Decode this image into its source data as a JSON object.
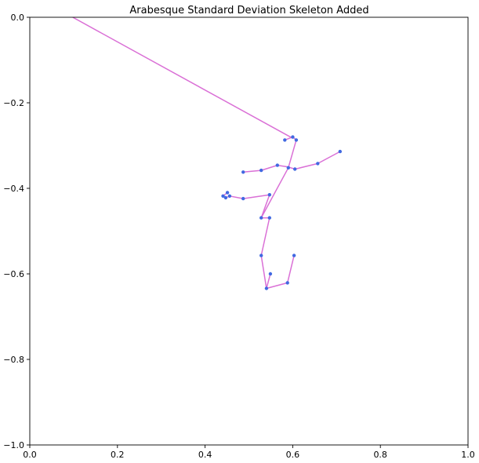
{
  "chart_data": {
    "type": "line",
    "title": "Arabesque Standard Deviation Skeleton Added",
    "xlabel": "",
    "ylabel": "",
    "xlim": [
      0,
      1
    ],
    "ylim": [
      -1,
      0
    ],
    "xticks": [
      0.0,
      0.2,
      0.4,
      0.6,
      0.8,
      1.0
    ],
    "xtick_labels": [
      "0.0",
      "0.2",
      "0.4",
      "0.6",
      "0.8",
      "1.0"
    ],
    "yticks": [
      0.0,
      -0.2,
      -0.4,
      -0.6,
      -0.8,
      -1.0
    ],
    "ytick_labels": [
      "0.0",
      "−0.2",
      "−0.4",
      "−0.6",
      "−0.8",
      "−1.0"
    ],
    "grid": false,
    "line_color": "#da70d6",
    "point_color": "#4169e1",
    "segments": [
      {
        "x": [
          0.098,
          0.6
        ],
        "y": [
          0.0,
          -0.283
        ]
      },
      {
        "x": [
          0.582,
          0.6,
          0.608
        ],
        "y": [
          -0.287,
          -0.28,
          -0.287
        ]
      },
      {
        "x": [
          0.608,
          0.59,
          0.528
        ],
        "y": [
          -0.287,
          -0.352,
          -0.469
        ]
      },
      {
        "x": [
          0.487,
          0.528,
          0.565,
          0.59,
          0.605,
          0.657,
          0.708
        ],
        "y": [
          -0.362,
          -0.358,
          -0.346,
          -0.35,
          -0.355,
          -0.342,
          -0.314
        ]
      },
      {
        "x": [
          0.451,
          0.441,
          0.447,
          0.456,
          0.487,
          0.547,
          0.528
        ],
        "y": [
          -0.41,
          -0.418,
          -0.422,
          -0.418,
          -0.424,
          -0.415,
          -0.469
        ]
      },
      {
        "x": [
          0.528,
          0.547,
          0.528,
          0.54,
          0.588,
          0.603
        ],
        "y": [
          -0.469,
          -0.469,
          -0.557,
          -0.634,
          -0.621,
          -0.557
        ]
      },
      {
        "x": [
          0.54,
          0.549
        ],
        "y": [
          -0.634,
          -0.6
        ]
      }
    ],
    "points": {
      "x": [
        0.582,
        0.6,
        0.608,
        0.59,
        0.528,
        0.487,
        0.528,
        0.565,
        0.605,
        0.657,
        0.708,
        0.451,
        0.441,
        0.447,
        0.456,
        0.487,
        0.547,
        0.547,
        0.528,
        0.54,
        0.588,
        0.603,
        0.549
      ],
      "y": [
        -0.287,
        -0.28,
        -0.287,
        -0.352,
        -0.469,
        -0.362,
        -0.358,
        -0.346,
        -0.355,
        -0.342,
        -0.314,
        -0.41,
        -0.418,
        -0.422,
        -0.418,
        -0.424,
        -0.415,
        -0.469,
        -0.557,
        -0.634,
        -0.621,
        -0.557,
        -0.6
      ]
    }
  }
}
